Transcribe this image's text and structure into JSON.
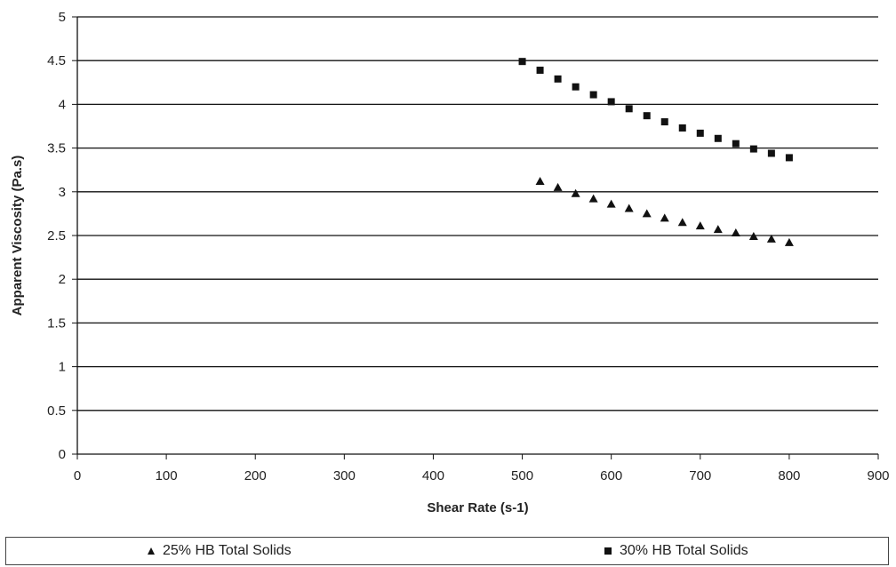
{
  "chart_data": {
    "type": "scatter",
    "xlabel": "Shear Rate (s-1)",
    "ylabel": "Apparent Viscosity (Pa.s)",
    "xlim": [
      0,
      900
    ],
    "ylim": [
      0,
      5
    ],
    "xticks": [
      "0",
      "100",
      "200",
      "300",
      "400",
      "500",
      "600",
      "700",
      "800",
      "900"
    ],
    "yticks": [
      "0",
      "0.5",
      "1",
      "1.5",
      "2",
      "2.5",
      "3",
      "3.5",
      "4",
      "4.5",
      "5"
    ],
    "grid": "horizontal",
    "legend_position": "bottom",
    "series": [
      {
        "name": "25% HB Total Solids",
        "marker": "triangle",
        "color": "#111111",
        "x": [
          520,
          540,
          560,
          580,
          600,
          620,
          640,
          660,
          680,
          700,
          720,
          740,
          760,
          780,
          800
        ],
        "y": [
          3.12,
          3.05,
          2.98,
          2.92,
          2.86,
          2.81,
          2.75,
          2.7,
          2.65,
          2.61,
          2.57,
          2.53,
          2.49,
          2.46,
          2.42
        ]
      },
      {
        "name": "30% HB Total Solids",
        "marker": "square",
        "color": "#111111",
        "x": [
          500,
          520,
          540,
          560,
          580,
          600,
          620,
          640,
          660,
          680,
          700,
          720,
          740,
          760,
          780,
          800
        ],
        "y": [
          4.49,
          4.39,
          4.29,
          4.2,
          4.11,
          4.03,
          3.95,
          3.87,
          3.8,
          3.73,
          3.67,
          3.61,
          3.55,
          3.49,
          3.44,
          3.39
        ]
      }
    ]
  },
  "legend": {
    "entry_1": "25% HB Total Solids",
    "entry_2": "30% HB Total Solids"
  }
}
